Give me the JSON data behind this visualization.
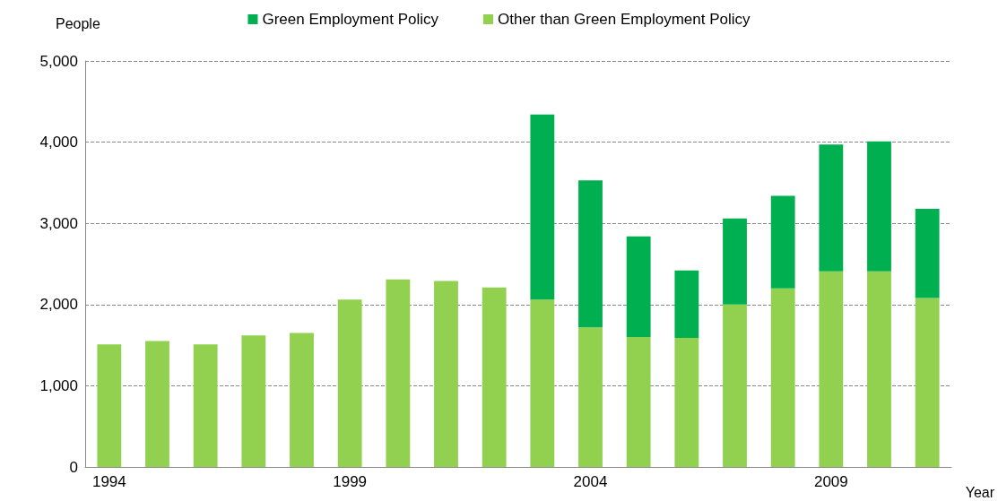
{
  "chart_data": {
    "type": "bar",
    "stacked": true,
    "xlabel": "Year",
    "ylabel": "People",
    "categories": [
      "1994",
      null,
      null,
      null,
      null,
      "1999",
      null,
      null,
      null,
      null,
      "2004",
      null,
      null,
      null,
      null,
      "2009",
      null,
      null
    ],
    "series": [
      {
        "name": "Other than Green Employment Policy",
        "color": "#92d050",
        "values": [
          1510,
          1550,
          1510,
          1620,
          1650,
          2060,
          2310,
          2290,
          2210,
          2060,
          1720,
          1600,
          1590,
          2000,
          2200,
          2410,
          2410,
          2080
        ]
      },
      {
        "name": "Green Employment Policy",
        "color": "#00b050",
        "values": [
          0,
          0,
          0,
          0,
          0,
          0,
          0,
          0,
          0,
          2280,
          1810,
          1240,
          830,
          1060,
          1140,
          1560,
          1600,
          1100
        ]
      }
    ],
    "ylim": [
      0,
      5000
    ],
    "yticks": [
      0,
      {
        "value": 1000,
        "label": "1,000"
      },
      {
        "value": 2000,
        "label": "2,000"
      },
      {
        "value": 3000,
        "label": "3,000"
      },
      {
        "value": 4000,
        "label": "4,000"
      },
      {
        "value": 5000,
        "label": "5,000"
      }
    ],
    "grid": "y",
    "legend": "top"
  }
}
